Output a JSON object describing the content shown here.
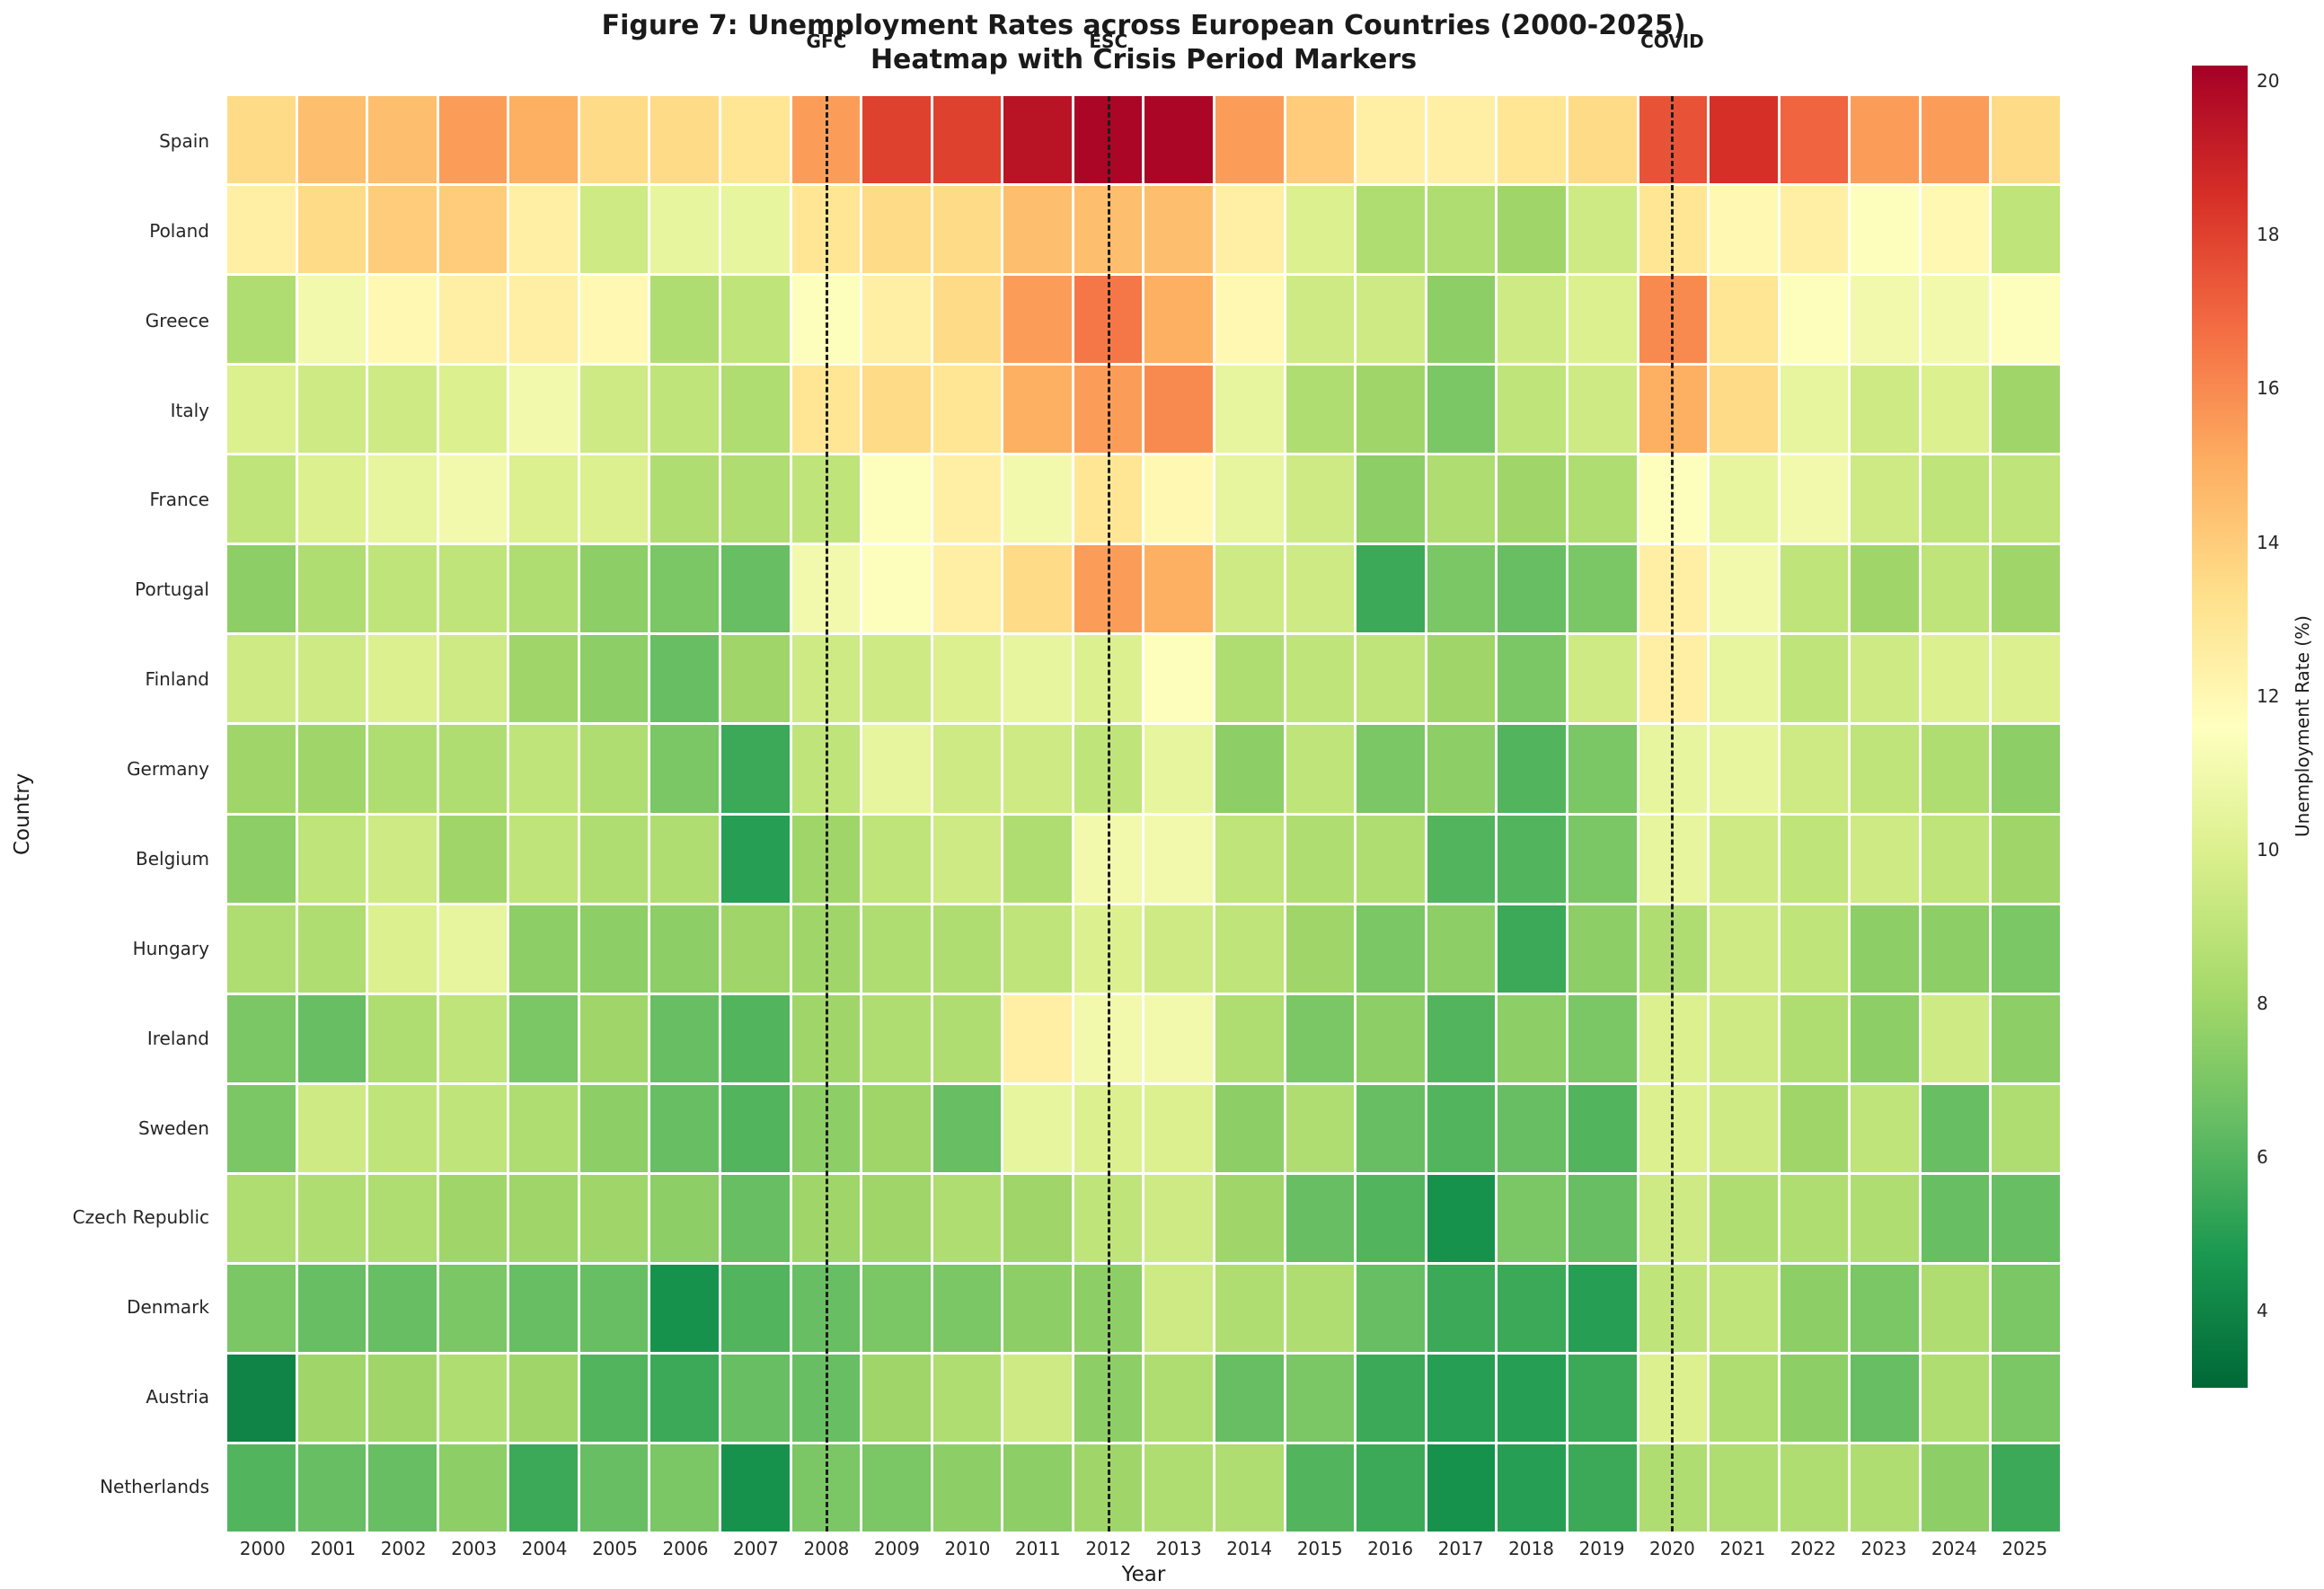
{
  "figure": {
    "title_line1": "Figure 7: Unemployment Rates across European Countries (2000-2025)",
    "title_line2": "Heatmap with Crisis Period Markers",
    "xlabel": "Year",
    "ylabel": "Country"
  },
  "chart_data": {
    "type": "heatmap",
    "title": "Figure 7: Unemployment Rates across European Countries (2000-2025) — Heatmap with Crisis Period Markers",
    "xlabel": "Year",
    "ylabel": "Country",
    "x": [
      2000,
      2001,
      2002,
      2003,
      2004,
      2005,
      2006,
      2007,
      2008,
      2009,
      2010,
      2011,
      2012,
      2013,
      2014,
      2015,
      2016,
      2017,
      2018,
      2019,
      2020,
      2021,
      2022,
      2023,
      2024,
      2025
    ],
    "categories": [
      "Spain",
      "Poland",
      "Greece",
      "Italy",
      "France",
      "Portugal",
      "Finland",
      "Germany",
      "Belgium",
      "Hungary",
      "Ireland",
      "Sweden",
      "Czech Republic",
      "Denmark",
      "Austria",
      "Netherlands"
    ],
    "series": [
      {
        "name": "Spain",
        "values": [
          13.5,
          14.5,
          14.5,
          15.5,
          15.0,
          13.5,
          13.5,
          13.0,
          15.5,
          18.0,
          18.0,
          19.5,
          20.0,
          20.0,
          15.5,
          14.0,
          12.5,
          12.5,
          13.0,
          13.5,
          17.5,
          18.5,
          17.0,
          15.5,
          15.5,
          13.5
        ]
      },
      {
        "name": "Poland",
        "values": [
          12.5,
          13.5,
          14.0,
          14.0,
          12.5,
          9.5,
          10.5,
          10.5,
          13.0,
          13.5,
          13.5,
          14.5,
          14.5,
          14.5,
          12.5,
          10.0,
          8.5,
          8.5,
          8.0,
          9.5,
          13.0,
          12.0,
          12.5,
          11.5,
          12.0,
          9.0
        ]
      },
      {
        "name": "Greece",
        "values": [
          8.5,
          11.0,
          12.0,
          12.5,
          12.5,
          12.0,
          8.5,
          9.0,
          11.5,
          12.5,
          13.5,
          15.5,
          16.5,
          15.0,
          12.0,
          9.5,
          9.5,
          7.5,
          9.5,
          10.0,
          16.0,
          13.0,
          11.5,
          11.0,
          11.0,
          11.5
        ]
      },
      {
        "name": "Italy",
        "values": [
          10.0,
          9.5,
          9.5,
          10.0,
          11.0,
          9.5,
          9.0,
          8.5,
          13.0,
          13.5,
          13.0,
          15.0,
          15.5,
          16.0,
          10.5,
          8.5,
          8.0,
          7.0,
          9.0,
          9.5,
          15.0,
          13.5,
          10.5,
          9.5,
          10.0,
          8.0
        ]
      },
      {
        "name": "France",
        "values": [
          9.0,
          10.0,
          10.5,
          11.0,
          10.0,
          10.0,
          8.5,
          8.5,
          9.0,
          11.5,
          12.5,
          11.0,
          13.0,
          12.0,
          10.5,
          9.5,
          7.5,
          8.5,
          8.0,
          8.5,
          11.5,
          10.5,
          11.0,
          9.5,
          9.0,
          9.0
        ]
      },
      {
        "name": "Portugal",
        "values": [
          7.5,
          8.5,
          9.0,
          9.0,
          8.5,
          7.5,
          7.0,
          6.5,
          11.0,
          11.5,
          12.5,
          13.5,
          15.5,
          15.0,
          9.5,
          9.5,
          5.5,
          7.0,
          6.5,
          7.0,
          12.5,
          11.0,
          9.0,
          8.0,
          9.0,
          8.0
        ]
      },
      {
        "name": "Finland",
        "values": [
          9.5,
          9.5,
          10.0,
          9.5,
          8.0,
          7.5,
          6.5,
          8.0,
          9.5,
          9.5,
          10.0,
          10.5,
          10.0,
          11.5,
          8.5,
          9.0,
          9.0,
          8.0,
          7.0,
          9.5,
          12.5,
          10.5,
          9.0,
          9.5,
          10.0,
          10.0
        ]
      },
      {
        "name": "Germany",
        "values": [
          8.0,
          8.0,
          8.5,
          8.5,
          9.0,
          8.5,
          7.0,
          5.5,
          9.0,
          10.5,
          9.5,
          9.5,
          9.0,
          10.5,
          7.5,
          9.0,
          7.0,
          7.5,
          6.0,
          7.0,
          10.5,
          10.5,
          9.5,
          9.0,
          8.5,
          7.5
        ]
      },
      {
        "name": "Belgium",
        "values": [
          7.5,
          9.0,
          9.5,
          8.0,
          9.0,
          8.5,
          8.5,
          5.0,
          8.0,
          9.0,
          9.5,
          8.5,
          11.0,
          11.0,
          9.0,
          8.5,
          8.5,
          6.0,
          6.0,
          7.0,
          10.5,
          9.5,
          9.0,
          9.5,
          9.0,
          8.0
        ]
      },
      {
        "name": "Hungary",
        "values": [
          8.5,
          8.5,
          10.0,
          10.5,
          7.5,
          7.5,
          7.5,
          8.0,
          8.0,
          8.5,
          8.5,
          9.0,
          10.0,
          9.5,
          9.0,
          8.0,
          7.0,
          7.5,
          5.5,
          7.5,
          8.5,
          9.5,
          9.0,
          7.5,
          7.5,
          7.0
        ]
      },
      {
        "name": "Ireland",
        "values": [
          7.0,
          6.5,
          8.5,
          9.0,
          7.0,
          8.0,
          6.5,
          6.0,
          8.0,
          8.5,
          8.5,
          12.5,
          11.0,
          11.0,
          8.5,
          7.0,
          7.5,
          6.0,
          7.5,
          7.0,
          10.0,
          9.5,
          8.5,
          7.5,
          9.5,
          7.5
        ]
      },
      {
        "name": "Sweden",
        "values": [
          7.0,
          9.5,
          9.0,
          9.0,
          8.5,
          7.5,
          6.5,
          6.0,
          7.5,
          8.0,
          6.5,
          10.5,
          10.0,
          10.0,
          7.5,
          8.5,
          6.5,
          6.0,
          6.5,
          6.0,
          10.0,
          9.5,
          8.0,
          9.0,
          6.5,
          8.5
        ]
      },
      {
        "name": "Czech Republic",
        "values": [
          8.5,
          8.5,
          8.5,
          8.0,
          8.0,
          8.0,
          7.5,
          6.5,
          8.0,
          8.0,
          8.5,
          8.0,
          9.0,
          9.5,
          8.0,
          6.5,
          6.0,
          4.5,
          7.0,
          6.5,
          9.5,
          8.5,
          8.5,
          8.5,
          6.5,
          6.5
        ]
      },
      {
        "name": "Denmark",
        "values": [
          7.0,
          6.5,
          6.5,
          7.0,
          6.5,
          6.5,
          4.5,
          6.0,
          6.5,
          7.0,
          7.0,
          7.5,
          7.5,
          9.5,
          8.5,
          8.5,
          6.5,
          5.5,
          5.5,
          5.0,
          9.0,
          9.0,
          7.5,
          7.0,
          8.5,
          7.0
        ]
      },
      {
        "name": "Austria",
        "values": [
          4.0,
          8.0,
          8.0,
          8.5,
          8.0,
          6.0,
          5.5,
          6.5,
          6.5,
          8.0,
          8.5,
          9.5,
          7.5,
          8.5,
          6.5,
          7.0,
          5.5,
          5.0,
          5.0,
          5.5,
          10.0,
          8.5,
          7.5,
          6.5,
          8.5,
          7.0
        ]
      },
      {
        "name": "Netherlands",
        "values": [
          6.0,
          6.5,
          6.5,
          7.5,
          5.5,
          6.5,
          7.0,
          4.5,
          7.0,
          7.0,
          7.5,
          7.5,
          8.0,
          8.5,
          8.5,
          6.0,
          5.5,
          4.5,
          5.0,
          5.5,
          8.5,
          8.5,
          8.5,
          8.5,
          7.5,
          5.5
        ]
      }
    ],
    "crisis_markers": [
      {
        "label": "GFC",
        "year": 2008
      },
      {
        "label": "ESC",
        "year": 2012
      },
      {
        "label": "COVID",
        "year": 2020
      }
    ],
    "marker_style": {
      "color": "#1c1c1c",
      "dash": true
    },
    "color_scale": {
      "label": "Unemployment Rate (%)",
      "vmin": 3.0,
      "vmax": 20.2,
      "ticks": [
        20,
        18,
        16,
        14,
        12,
        10,
        8,
        6,
        4
      ],
      "anchors_low_to_high": [
        "#006837",
        "#1a9850",
        "#66bd63",
        "#a6d96a",
        "#d9ef8b",
        "#ffffbf",
        "#fee08b",
        "#fdae61",
        "#f46d43",
        "#d73027",
        "#a50026"
      ]
    },
    "grid": false,
    "legend_position": "right-colorbar"
  }
}
